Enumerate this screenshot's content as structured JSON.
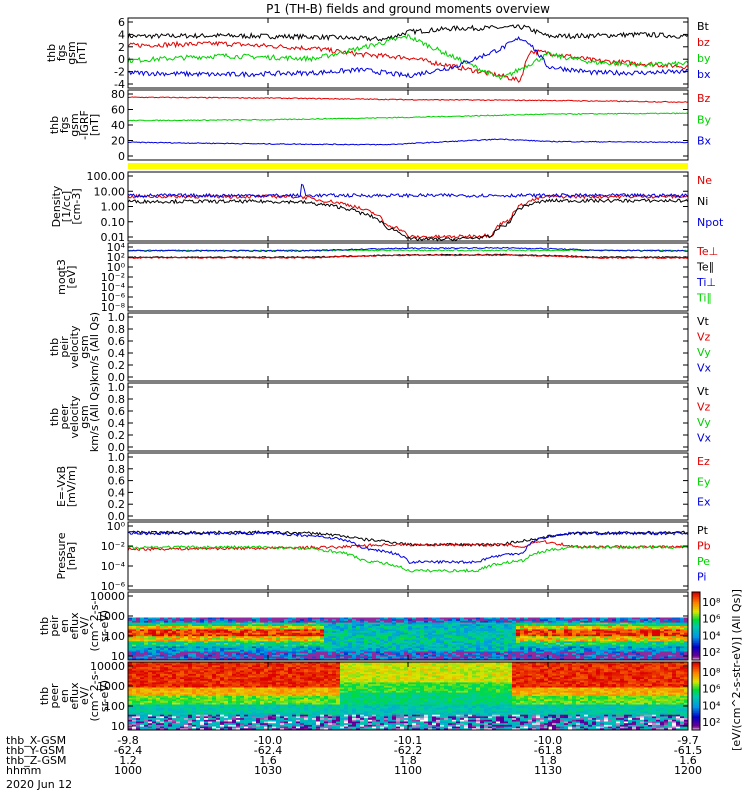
{
  "title": "P1 (TH-B) fields and ground moments overview",
  "colors": {
    "black": "#000000",
    "red": "#e00000",
    "green": "#00d000",
    "blue": "#0000e0",
    "yellow": "#ffff00"
  },
  "chart_data": {
    "type": "line",
    "x_hhmm_ticks": [
      "1000",
      "1030",
      "1100",
      "1130",
      "1200"
    ],
    "x_range_minutes": [
      0,
      120
    ],
    "panels": [
      {
        "id": "fgs",
        "ylabel": [
          "thb",
          "fgs",
          "gsm",
          "[nT]"
        ],
        "yticks": [
          "6",
          "4",
          "2",
          "0",
          "-2",
          "-4"
        ],
        "ylim": [
          -5,
          6.5
        ],
        "scale": "linear",
        "legend": [
          {
            "name": "Bt",
            "color": "black"
          },
          {
            "name": "bz",
            "color": "red"
          },
          {
            "name": "by",
            "color": "green"
          },
          {
            "name": "bx",
            "color": "blue"
          }
        ],
        "series": [
          {
            "name": "Bt",
            "color": "black",
            "t": [
              0,
              20,
              40,
              55,
              60,
              70,
              80,
              85,
              90,
              100,
              110,
              120
            ],
            "v": [
              3.5,
              3.6,
              3.4,
              3.0,
              4.2,
              4.8,
              4.9,
              5.0,
              3.5,
              3.6,
              3.8,
              3.5
            ]
          },
          {
            "name": "bz",
            "color": "red",
            "t": [
              0,
              20,
              40,
              50,
              60,
              70,
              80,
              84,
              86,
              90,
              100,
              110,
              120
            ],
            "v": [
              2.0,
              2.3,
              1.5,
              0.5,
              0.0,
              -1.5,
              -3.0,
              -3.8,
              1.0,
              0.8,
              -0.5,
              -1.0,
              -1.5
            ]
          },
          {
            "name": "by",
            "color": "green",
            "t": [
              0,
              20,
              40,
              55,
              60,
              70,
              80,
              85,
              90,
              100,
              110,
              120
            ],
            "v": [
              -0.5,
              0.3,
              -0.2,
              2.5,
              3.5,
              0.0,
              -3.5,
              -1.5,
              0.5,
              -0.8,
              -1.2,
              -1.0
            ]
          },
          {
            "name": "bx",
            "color": "blue",
            "t": [
              0,
              20,
              40,
              50,
              60,
              70,
              80,
              84,
              86,
              90,
              100,
              110,
              120
            ],
            "v": [
              -2.5,
              -2.8,
              -2.5,
              -2.0,
              -3.0,
              -1.5,
              1.5,
              3.2,
              2.5,
              -1.5,
              -2.5,
              -2.5,
              -2.3
            ]
          }
        ]
      },
      {
        "id": "fgs_sm",
        "ylabel": [
          "thb",
          "fgs",
          "gsm",
          "-IGRF",
          "[nT]"
        ],
        "yticks": [
          "80",
          "60",
          "40",
          "20",
          "0"
        ],
        "ylim": [
          -5,
          82
        ],
        "scale": "linear",
        "legend": [
          {
            "name": "Bz",
            "color": "red"
          },
          {
            "name": "By",
            "color": "green"
          },
          {
            "name": "Bx",
            "color": "blue"
          }
        ],
        "series": [
          {
            "name": "Bz",
            "color": "red",
            "t": [
              0,
              30,
              60,
              90,
              120
            ],
            "v": [
              73,
              72,
              70,
              69,
              67
            ]
          },
          {
            "name": "By",
            "color": "green",
            "t": [
              0,
              30,
              60,
              90,
              120
            ],
            "v": [
              44,
              45,
              48,
              52,
              53
            ]
          },
          {
            "name": "Bx",
            "color": "blue",
            "t": [
              0,
              30,
              55,
              80,
              90,
              120
            ],
            "v": [
              17,
              15,
              14,
              21,
              18,
              17
            ]
          }
        ]
      },
      {
        "id": "density",
        "ylabel": [
          "Density",
          "[1/cc]",
          "[cm-3]"
        ],
        "yticks": [
          "100.00",
          "10.00",
          "1.00",
          "0.10",
          "0.01"
        ],
        "ylim": [
          0.003,
          300
        ],
        "scale": "log",
        "legend": [
          {
            "name": "Ne",
            "color": "red"
          },
          {
            "name": "Ni",
            "color": "black"
          },
          {
            "name": "Npot",
            "color": "blue"
          }
        ],
        "series": [
          {
            "name": "Ne",
            "color": "red",
            "t": [
              0,
              30,
              37,
              40,
              50,
              55,
              60,
              70,
              78,
              82,
              85,
              90,
              120
            ],
            "v": [
              5,
              5,
              5,
              3,
              0.6,
              0.05,
              0.006,
              0.006,
              0.008,
              0.1,
              1.5,
              5,
              5
            ]
          },
          {
            "name": "Ni",
            "color": "black",
            "t": [
              0,
              30,
              37,
              40,
              50,
              55,
              60,
              70,
              78,
              82,
              85,
              90,
              120
            ],
            "v": [
              2.2,
              2.2,
              2.0,
              1.5,
              0.3,
              0.03,
              0.004,
              0.004,
              0.006,
              0.06,
              1.0,
              2.5,
              2.5
            ]
          },
          {
            "name": "Npot",
            "color": "blue",
            "t": [
              0,
              37,
              37.3,
              38,
              120
            ],
            "v": [
              6,
              6,
              40,
              6,
              6
            ]
          }
        ]
      },
      {
        "id": "temp",
        "ylabel": [
          "moqt3",
          "[eV]"
        ],
        "yticks": [
          "10⁴",
          "10²",
          "10⁰",
          "10⁻²",
          "10⁻⁴",
          "10⁻⁶",
          "10⁻⁸"
        ],
        "ylim": [
          1e-09,
          100000.0
        ],
        "scale": "log",
        "legend": [
          {
            "name": "Te⊥",
            "color": "red"
          },
          {
            "name": "Te∥",
            "color": "black"
          },
          {
            "name": "Ti⊥",
            "color": "blue"
          },
          {
            "name": "Ti∥",
            "color": "green"
          }
        ],
        "series": [
          {
            "name": "Ti∥",
            "color": "green",
            "t": [
              0,
              120
            ],
            "v": [
              3000,
              3000
            ]
          },
          {
            "name": "Ti⊥",
            "color": "blue",
            "t": [
              0,
              40,
              60,
              80,
              100,
              120
            ],
            "v": [
              2500,
              2500,
              8000,
              10000,
              3000,
              2500
            ]
          },
          {
            "name": "Te∥",
            "color": "black",
            "t": [
              0,
              40,
              60,
              80,
              100,
              120
            ],
            "v": [
              120,
              120,
              350,
              400,
              120,
              120
            ]
          },
          {
            "name": "Te⊥",
            "color": "red",
            "t": [
              0,
              40,
              60,
              80,
              100,
              120
            ],
            "v": [
              90,
              90,
              300,
              330,
              90,
              90
            ]
          }
        ]
      },
      {
        "id": "peir_v",
        "ylabel": [
          "thb",
          "peir",
          "velocity",
          "gsm",
          "km/s (All Qs)"
        ],
        "yticks": [
          "1.0",
          "0.8",
          "0.6",
          "0.4",
          "0.2",
          "0.0"
        ],
        "ylim": [
          0,
          1
        ],
        "scale": "linear",
        "legend": [
          {
            "name": "Vt",
            "color": "black"
          },
          {
            "name": "Vz",
            "color": "red"
          },
          {
            "name": "Vy",
            "color": "green"
          },
          {
            "name": "Vx",
            "color": "blue"
          }
        ],
        "series": []
      },
      {
        "id": "peer_v",
        "ylabel": [
          "thb",
          "peer",
          "velocity",
          "gsm",
          "km/s (All Qs)"
        ],
        "yticks": [
          "1.0",
          "0.8",
          "0.6",
          "0.4",
          "0.2",
          "0.0"
        ],
        "ylim": [
          0,
          1
        ],
        "scale": "linear",
        "legend": [
          {
            "name": "Vt",
            "color": "black"
          },
          {
            "name": "Vz",
            "color": "red"
          },
          {
            "name": "Vy",
            "color": "green"
          },
          {
            "name": "Vx",
            "color": "blue"
          }
        ],
        "series": []
      },
      {
        "id": "efield",
        "ylabel": [
          "E=-VxB",
          "[mV/m]"
        ],
        "yticks": [
          "1.0",
          "0.8",
          "0.6",
          "0.4",
          "0.2",
          "0.0"
        ],
        "ylim": [
          0,
          1
        ],
        "scale": "linear",
        "legend": [
          {
            "name": "Ez",
            "color": "red"
          },
          {
            "name": "Ey",
            "color": "green"
          },
          {
            "name": "Ex",
            "color": "blue"
          }
        ],
        "series": []
      },
      {
        "id": "pressure",
        "ylabel": [
          "Pressure",
          "[nPa]"
        ],
        "yticks": [
          "10⁰",
          "10⁻²",
          "10⁻⁴",
          "10⁻⁶"
        ],
        "ylim": [
          1e-06,
          1
        ],
        "scale": "log",
        "legend": [
          {
            "name": "Pt",
            "color": "black"
          },
          {
            "name": "Pb",
            "color": "red"
          },
          {
            "name": "Pe",
            "color": "green"
          },
          {
            "name": "Pi",
            "color": "blue"
          }
        ],
        "series": [
          {
            "name": "Pt",
            "color": "black",
            "t": [
              0,
              30,
              40,
              50,
              60,
              80,
              88,
              95,
              120
            ],
            "v": [
              0.12,
              0.12,
              0.1,
              0.03,
              0.01,
              0.01,
              0.03,
              0.1,
              0.12
            ]
          },
          {
            "name": "Pb",
            "color": "red",
            "t": [
              0,
              30,
              45,
              55,
              60,
              80,
              85,
              88,
              95,
              120
            ],
            "v": [
              0.004,
              0.005,
              0.006,
              0.01,
              0.01,
              0.01,
              0.006,
              0.02,
              0.007,
              0.006
            ]
          },
          {
            "name": "Pe",
            "color": "green",
            "t": [
              0,
              30,
              40,
              50,
              60,
              75,
              85,
              90,
              95,
              120
            ],
            "v": [
              0.006,
              0.006,
              0.004,
              0.0004,
              5e-05,
              5e-05,
              0.0004,
              0.003,
              0.006,
              0.006
            ]
          },
          {
            "name": "Pi",
            "color": "blue",
            "t": [
              0,
              30,
              40,
              50,
              60,
              75,
              85,
              90,
              95,
              120
            ],
            "v": [
              0.1,
              0.1,
              0.06,
              0.005,
              0.0003,
              0.0003,
              0.002,
              0.05,
              0.1,
              0.1
            ]
          }
        ]
      },
      {
        "id": "peir_en",
        "ylabel": [
          "thb",
          "peir",
          "en",
          "eflux",
          "eV/",
          "(cm^2-s-",
          "sr-eV)"
        ],
        "yticks": [
          "10000",
          "1000",
          "100",
          "10"
        ],
        "ylim": [
          3,
          30000
        ],
        "scale": "log",
        "spectrogram": "ion"
      },
      {
        "id": "peer_en",
        "ylabel": [
          "thb",
          "peer",
          "en",
          "eflux",
          "eV/",
          "(cm^2-s-",
          "sr-eV)"
        ],
        "yticks": [
          "10000",
          "1000",
          "100",
          "10"
        ],
        "ylim": [
          3,
          30000
        ],
        "scale": "log",
        "spectrogram": "electron"
      }
    ],
    "colorbars": [
      {
        "ticks": [
          "10⁸",
          "10⁶",
          "10⁴",
          "10²"
        ]
      },
      {
        "ticks": [
          "10⁸",
          "10⁶",
          "10⁴",
          "10²"
        ]
      }
    ],
    "colorbar_label": "[eV/(cm^2-s-str-eV)] (All Qs)]",
    "ephemeris": [
      {
        "label": "thb_X-GSM",
        "values": [
          "-9.8",
          "-10.0",
          "-10.1",
          "-10.0",
          "-9.7"
        ]
      },
      {
        "label": "thb_Y-GSM",
        "values": [
          "-62.4",
          "-62.4",
          "-62.2",
          "-61.8",
          "-61.5"
        ]
      },
      {
        "label": "thb_Z-GSM",
        "values": [
          "1.2",
          "1.6",
          "1.8",
          "1.8",
          "1.6"
        ]
      },
      {
        "label": "hhmm",
        "values": [
          "1000",
          "1030",
          "1100",
          "1130",
          "1200"
        ]
      }
    ],
    "date": "2020 Jun 12"
  }
}
